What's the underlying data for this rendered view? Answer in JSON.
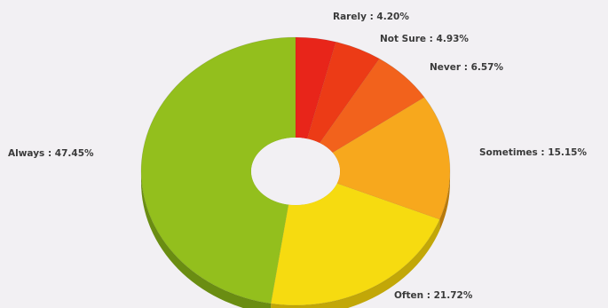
{
  "chart_data": {
    "type": "pie",
    "variant": "donut-3d",
    "start_angle_deg": 0,
    "direction": "clockwise",
    "slices": [
      {
        "name": "Rarely",
        "label": "Rarely : 4.20%",
        "value": 4.2,
        "color": "#e8251a",
        "side_color": "#a3170f"
      },
      {
        "name": "Not Sure",
        "label": "Not Sure : 4.93%",
        "value": 4.93,
        "color": "#ec3b16",
        "side_color": "#a8260c"
      },
      {
        "name": "Never",
        "label": "Never : 6.57%",
        "value": 6.57,
        "color": "#f2621c",
        "side_color": "#b0420e"
      },
      {
        "name": "Sometimes",
        "label": "Sometimes : 15.15%",
        "value": 15.15,
        "color": "#f7a81d",
        "side_color": "#b87a0c"
      },
      {
        "name": "Often",
        "label": "Often : 21.72%",
        "value": 21.72,
        "color": "#f6db10",
        "side_color": "#c2a708"
      },
      {
        "name": "Always",
        "label": "Always : 47.45%",
        "value": 47.45,
        "color": "#93bf1d",
        "side_color": "#6a8d12"
      }
    ]
  }
}
